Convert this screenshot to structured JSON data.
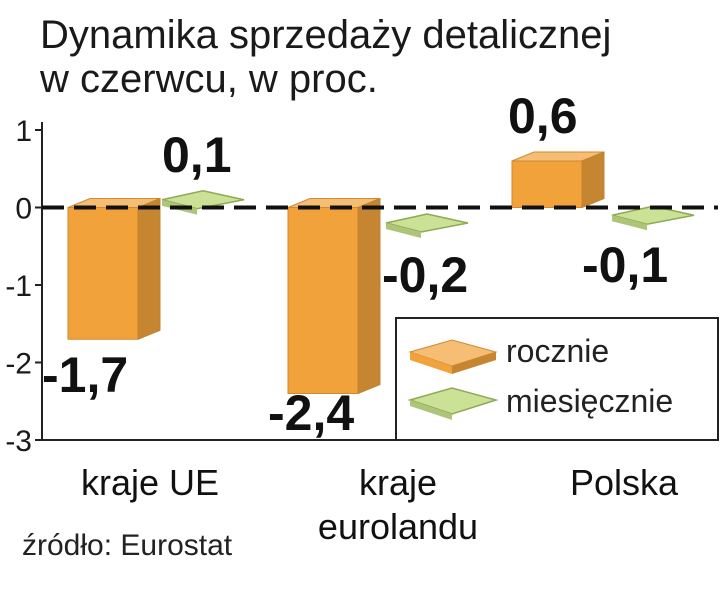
{
  "chart_data": {
    "type": "bar",
    "title": "Dynamika sprzedaży detalicznej",
    "subtitle": "w czerwcu, w proc.",
    "categories": [
      "kraje UE",
      "kraje eurolandu",
      "Polska"
    ],
    "category_lines": [
      [
        "kraje UE"
      ],
      [
        "kraje",
        "eurolandu"
      ],
      [
        "Polska"
      ]
    ],
    "series": [
      {
        "name": "rocznie",
        "values": [
          -1.7,
          -2.4,
          0.6
        ],
        "labels": [
          "-1,7",
          "-2,4",
          "0,6"
        ],
        "color": "#f2a23a"
      },
      {
        "name": "miesięcznie",
        "values": [
          0.1,
          -0.2,
          -0.1
        ],
        "labels": [
          "0,1",
          "-0,2",
          "-0,1"
        ],
        "color": "#c5df8a"
      }
    ],
    "ylim": [
      -3,
      1
    ],
    "yticks": [
      "1",
      "0",
      "-1",
      "-2",
      "-3"
    ],
    "legend_position": "bottom-right",
    "source": "źródło: Eurostat"
  }
}
